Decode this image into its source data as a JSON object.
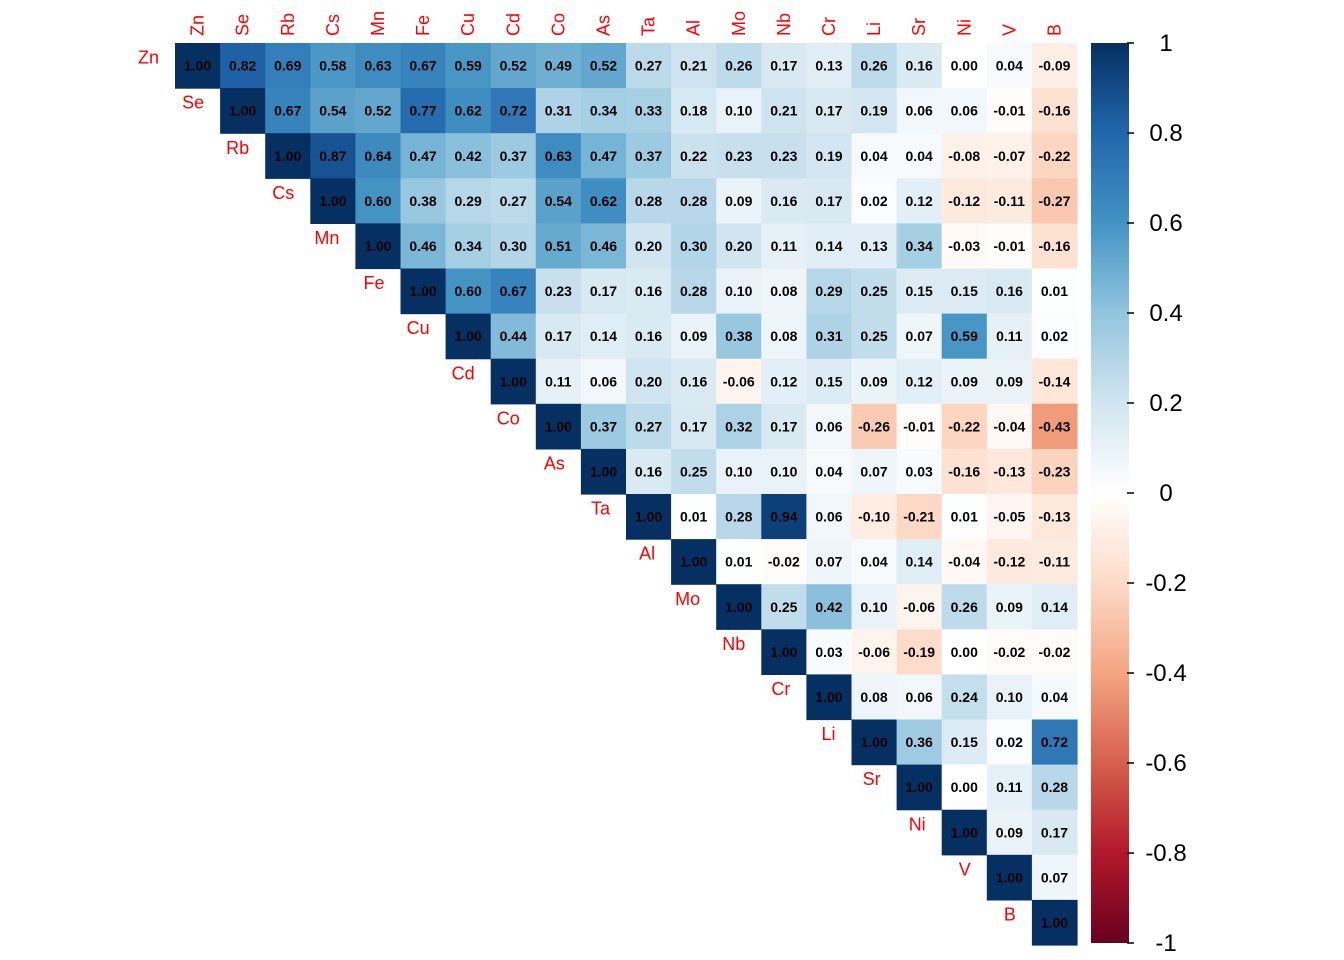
{
  "chart_data": {
    "type": "heatmap",
    "variables": [
      "Zn",
      "Se",
      "Rb",
      "Cs",
      "Mn",
      "Fe",
      "Cu",
      "Cd",
      "Co",
      "As",
      "Ta",
      "Al",
      "Mo",
      "Nb",
      "Cr",
      "Li",
      "Sr",
      "Ni",
      "V",
      "B"
    ],
    "upper_triangle_rows": [
      [
        1.0,
        0.82,
        0.69,
        0.58,
        0.63,
        0.67,
        0.59,
        0.52,
        0.49,
        0.52,
        0.27,
        0.21,
        0.26,
        0.17,
        0.13,
        0.26,
        0.16,
        0.0,
        0.04,
        -0.09
      ],
      [
        1.0,
        0.67,
        0.54,
        0.52,
        0.77,
        0.62,
        0.72,
        0.31,
        0.34,
        0.33,
        0.18,
        0.1,
        0.21,
        0.17,
        0.19,
        0.06,
        0.06,
        -0.01,
        -0.16
      ],
      [
        1.0,
        0.87,
        0.64,
        0.47,
        0.42,
        0.37,
        0.63,
        0.47,
        0.37,
        0.22,
        0.23,
        0.23,
        0.19,
        0.04,
        0.04,
        -0.08,
        -0.07,
        -0.22
      ],
      [
        1.0,
        0.6,
        0.38,
        0.29,
        0.27,
        0.54,
        0.62,
        0.28,
        0.28,
        0.09,
        0.16,
        0.17,
        0.02,
        0.12,
        -0.12,
        -0.11,
        -0.27
      ],
      [
        1.0,
        0.46,
        0.34,
        0.3,
        0.51,
        0.46,
        0.2,
        0.3,
        0.2,
        0.11,
        0.14,
        0.13,
        0.34,
        -0.03,
        -0.01,
        -0.16
      ],
      [
        1.0,
        0.6,
        0.67,
        0.23,
        0.17,
        0.16,
        0.28,
        0.1,
        0.08,
        0.29,
        0.25,
        0.15,
        0.15,
        0.16,
        0.01
      ],
      [
        1.0,
        0.44,
        0.17,
        0.14,
        0.16,
        0.09,
        0.38,
        0.08,
        0.31,
        0.25,
        0.07,
        0.59,
        0.11,
        0.02
      ],
      [
        1.0,
        0.11,
        0.06,
        0.2,
        0.16,
        -0.06,
        0.12,
        0.15,
        0.09,
        0.12,
        0.09,
        0.09,
        -0.14
      ],
      [
        1.0,
        0.37,
        0.27,
        0.17,
        0.32,
        0.17,
        0.06,
        -0.26,
        -0.01,
        -0.22,
        -0.04,
        -0.43
      ],
      [
        1.0,
        0.16,
        0.25,
        0.1,
        0.1,
        0.04,
        0.07,
        0.03,
        -0.16,
        -0.13,
        -0.23
      ],
      [
        1.0,
        0.01,
        0.28,
        0.94,
        0.06,
        -0.1,
        -0.21,
        0.01,
        -0.05,
        -0.13
      ],
      [
        1.0,
        0.01,
        -0.02,
        0.07,
        0.04,
        0.14,
        -0.04,
        -0.12,
        -0.11
      ],
      [
        1.0,
        0.25,
        0.42,
        0.1,
        -0.06,
        0.26,
        0.09,
        0.14
      ],
      [
        1.0,
        0.03,
        -0.06,
        -0.19,
        0.0,
        -0.02,
        -0.02
      ],
      [
        1.0,
        0.08,
        0.06,
        0.24,
        0.1,
        0.04
      ],
      [
        1.0,
        0.36,
        0.15,
        0.02,
        0.72
      ],
      [
        1.0,
        0.0,
        0.11,
        0.28
      ],
      [
        1.0,
        0.09,
        0.17
      ],
      [
        1.0,
        0.07
      ],
      [
        1.0
      ]
    ],
    "value_range": [
      -1,
      1
    ],
    "colorbar_ticks": [
      "1",
      "0.8",
      "0.6",
      "0.4",
      "0.2",
      "0",
      "-0.2",
      "-0.4",
      "-0.6",
      "-0.8",
      "-1"
    ],
    "colorbar_tick_values": [
      1,
      0.8,
      0.6,
      0.4,
      0.2,
      0,
      -0.2,
      -0.4,
      -0.6,
      -0.8,
      -1
    ],
    "color_scale": [
      "#67001F",
      "#B2182B",
      "#D6604D",
      "#F4A582",
      "#FDDBC7",
      "#FFFFFF",
      "#D1E5F0",
      "#92C5DE",
      "#4393C3",
      "#2166AC",
      "#053061"
    ],
    "label_color": "#FF0000",
    "text_color": "#000000",
    "legend_position": "right"
  }
}
